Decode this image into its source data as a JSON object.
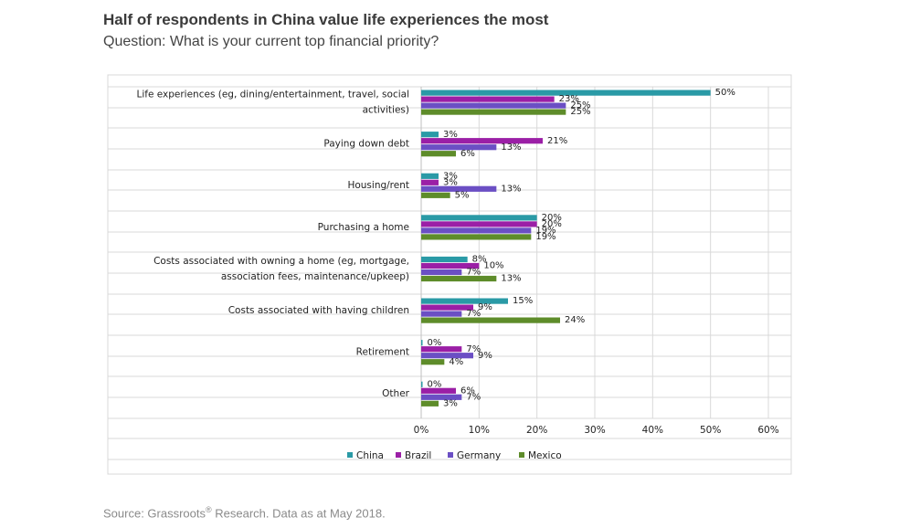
{
  "header": {
    "title": "Half of respondents in China value life experiences the most",
    "subtitle": "Question: What is your current top financial priority?"
  },
  "footer": {
    "source_text": "Source: Grassroots",
    "source_sup": "®",
    "source_tail": " Research. Data as at May 2018."
  },
  "chart_data": {
    "type": "bar",
    "orientation": "horizontal",
    "title": "Half of respondents in China value life experiences the most",
    "subtitle": "Question: What is your current top financial priority?",
    "categories": [
      [
        "Life experiences (eg, dining/entertainment, travel, social",
        "activities)"
      ],
      [
        "Paying down debt"
      ],
      [
        "Housing/rent"
      ],
      [
        "Purchasing a home"
      ],
      [
        "Costs associated with owning a home (eg, mortgage,",
        "association fees, maintenance/upkeep)"
      ],
      [
        "Costs associated with having children"
      ],
      [
        "Retirement"
      ],
      [
        "Other"
      ]
    ],
    "series": [
      {
        "name": "China",
        "color": "#2a9aa6",
        "values": [
          50,
          3,
          3,
          20,
          8,
          15,
          0,
          0
        ]
      },
      {
        "name": "Brazil",
        "color": "#9b1fa6",
        "values": [
          23,
          21,
          3,
          20,
          10,
          9,
          7,
          6
        ]
      },
      {
        "name": "Germany",
        "color": "#6b4fc4",
        "values": [
          25,
          13,
          13,
          19,
          7,
          7,
          9,
          7
        ]
      },
      {
        "name": "Mexico",
        "color": "#5e8c2a",
        "values": [
          25,
          6,
          5,
          19,
          13,
          24,
          4,
          3
        ]
      }
    ],
    "xlim": [
      0,
      60
    ],
    "xticks": [
      0,
      10,
      20,
      30,
      40,
      50,
      60
    ],
    "tick_suffix": "%",
    "value_suffix": "%",
    "legend_position": "bottom",
    "grid": true
  }
}
